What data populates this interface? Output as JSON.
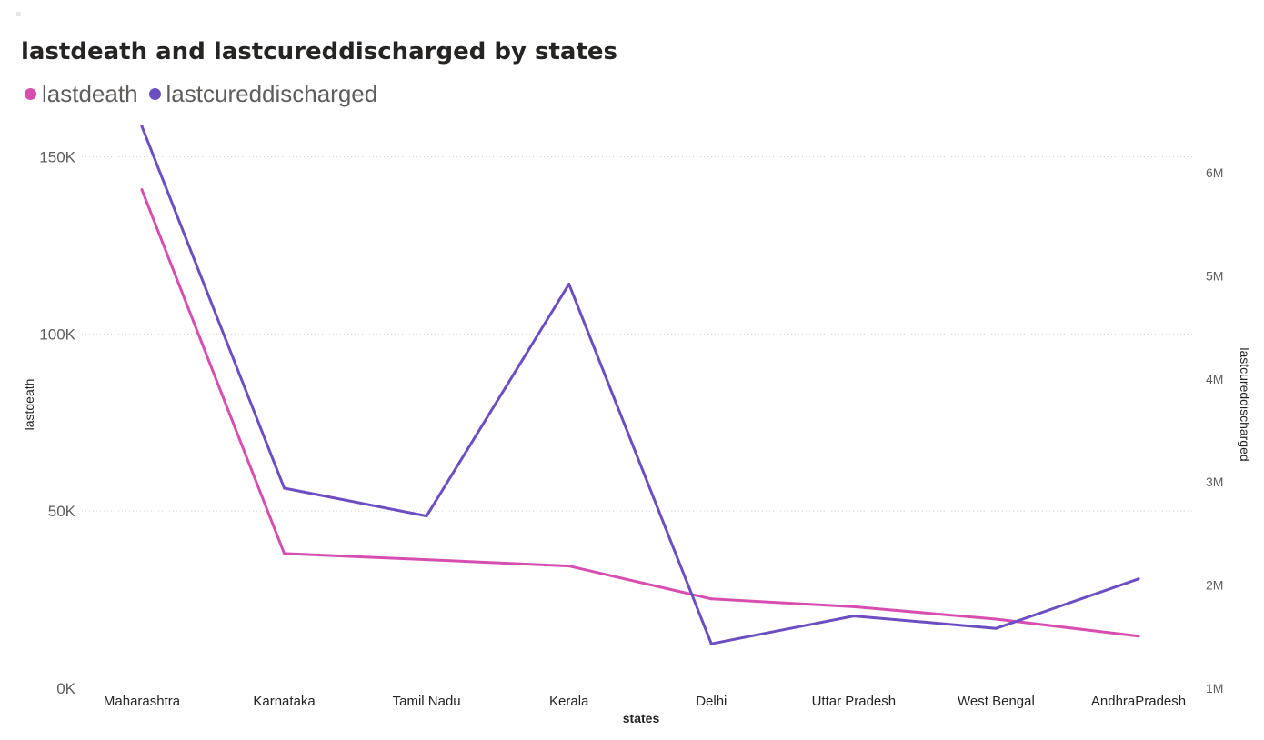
{
  "chart_data": {
    "type": "line",
    "title": "lastdeath and lastcureddischarged by states",
    "xlabel": "states",
    "ylabel": "lastdeath",
    "y2label": "lastcureddischarged",
    "categories": [
      "Maharashtra",
      "Karnataka",
      "Tamil Nadu",
      "Kerala",
      "Delhi",
      "Uttar Pradesh",
      "West Bengal",
      "AndhraPradesh"
    ],
    "series": [
      {
        "name": "lastdeath",
        "axis": "left",
        "color": "#d64fb0",
        "values": [
          140700,
          38000,
          36300,
          34500,
          25200,
          23000,
          19500,
          14700
        ]
      },
      {
        "name": "lastcureddischarged",
        "axis": "right",
        "color": "#6b4fc2",
        "values": [
          6450000,
          2940000,
          2670000,
          4920000,
          1430000,
          1700000,
          1580000,
          2060000
        ]
      }
    ],
    "ylim": [
      0,
      150000
    ],
    "y2lim": [
      1000000,
      6000000
    ],
    "yticks": [
      0,
      50000,
      100000,
      150000
    ],
    "ytick_labels": [
      "0K",
      "50K",
      "100K",
      "150K"
    ],
    "y2ticks": [
      1000000,
      2000000,
      3000000,
      4000000,
      5000000,
      6000000
    ],
    "y2tick_labels": [
      "1M",
      "2M",
      "3M",
      "4M",
      "5M",
      "6M"
    ],
    "grid": true,
    "legend": "top-left"
  }
}
